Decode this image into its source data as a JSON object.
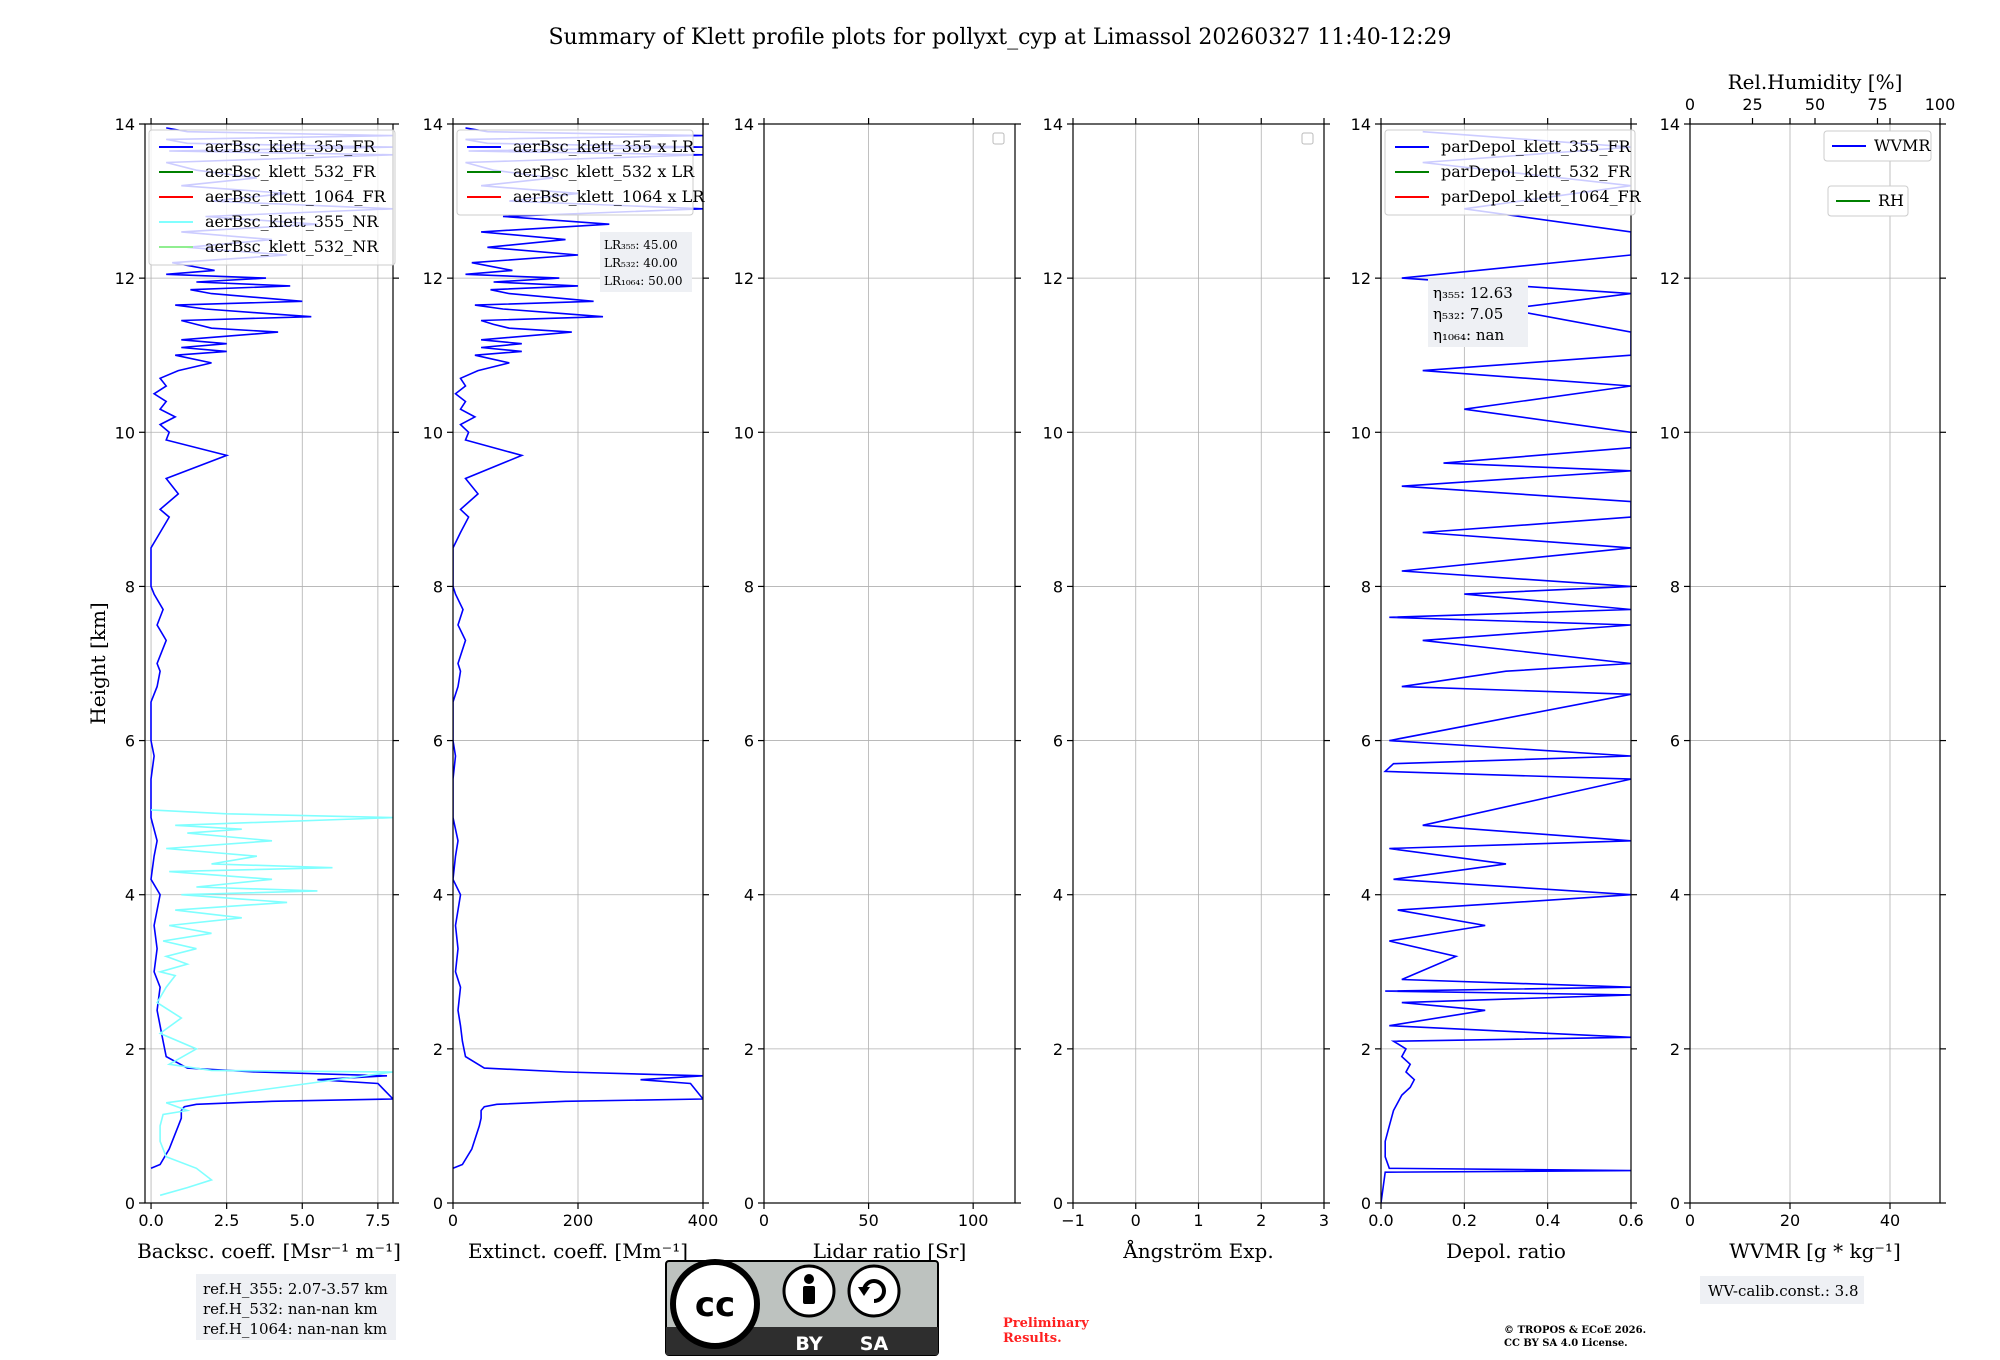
{
  "title": "Summary of Klett profile plots for pollyxt_cyp at Limassol 20260327 11:40-12:29",
  "colors": {
    "blue": "#0000ff",
    "green": "#008000",
    "red": "#ff0000",
    "cyan": "#80ffff",
    "lightgreen": "#90ee90",
    "prelim": "#ff2020"
  },
  "chart_data": [
    {
      "type": "line",
      "xlabel": "Backsc. coeff. [Msr⁻¹ m⁻¹]",
      "ylabel": "Height [km]",
      "xlim": [
        -0.2,
        8.0
      ],
      "ylim": [
        0,
        14
      ],
      "xticks": [
        "0.0",
        "2.5",
        "5.0",
        "7.5"
      ],
      "xtick_values": [
        0,
        2.5,
        5,
        7.5
      ],
      "yticks": [
        "0",
        "2",
        "4",
        "6",
        "8",
        "10",
        "12",
        "14"
      ],
      "legend": [
        "aerBsc_klett_355_FR",
        "aerBsc_klett_532_FR",
        "aerBsc_klett_1064_FR",
        "aerBsc_klett_355_NR",
        "aerBsc_klett_532_NR"
      ],
      "legend_colors": [
        "blue",
        "green",
        "red",
        "cyan",
        "lightgreen"
      ],
      "series": [
        {
          "name": "aerBsc_klett_355_FR",
          "color": "blue",
          "x": [
            0,
            0.3,
            0.6,
            0.9,
            1.0,
            1.0,
            1.1,
            1.5,
            4.0,
            8.0,
            7.5,
            5.5,
            7.8,
            3.5,
            1.2,
            0.5,
            0.4,
            0.3,
            0.2,
            0.3,
            0.1,
            0.2,
            0.1,
            0.3,
            0,
            0.1,
            0.2,
            0,
            0,
            0.1,
            0,
            0,
            0.2,
            0.3,
            0.2,
            0.5,
            0.2,
            0.4,
            0.1,
            0,
            0,
            0,
            0.3,
            0.6,
            0.3,
            0.9,
            0.5,
            2.5,
            0.5,
            0.6,
            0.3,
            0.8,
            0.3,
            0.5,
            0.1,
            0.5,
            0.3,
            0.9,
            2.0,
            0.8,
            2.5,
            1.0,
            2.5,
            1.0,
            4.2,
            2.0,
            1.5,
            1.0,
            5.3,
            3.5,
            1.8,
            0.8,
            5.0,
            2.0,
            1.3,
            4.6,
            1.5,
            3.8,
            0.5,
            2.1,
            0.7,
            4.5,
            1.2,
            4.0,
            1.0,
            5.5,
            1.8,
            8.0,
            2.0,
            4.5,
            1.0,
            3.5,
            1.5,
            0.5,
            8.0,
            0.6,
            8.0,
            1.2,
            0.5,
            8.0,
            1.2,
            0.5
          ],
          "y": [
            0.45,
            0.5,
            0.7,
            1.0,
            1.1,
            1.2,
            1.25,
            1.28,
            1.32,
            1.35,
            1.55,
            1.6,
            1.65,
            1.7,
            1.75,
            1.9,
            2.1,
            2.3,
            2.5,
            2.8,
            3.0,
            3.3,
            3.6,
            4.0,
            4.2,
            4.5,
            4.7,
            5.0,
            5.5,
            5.8,
            6.0,
            6.5,
            6.7,
            6.9,
            7.0,
            7.3,
            7.5,
            7.7,
            7.9,
            8.0,
            8.3,
            8.5,
            8.7,
            8.9,
            9.0,
            9.2,
            9.4,
            9.7,
            9.9,
            10.0,
            10.1,
            10.2,
            10.3,
            10.4,
            10.5,
            10.6,
            10.7,
            10.8,
            10.9,
            11.0,
            11.05,
            11.1,
            11.15,
            11.2,
            11.3,
            11.35,
            11.4,
            11.45,
            11.5,
            11.55,
            11.6,
            11.65,
            11.7,
            11.8,
            11.85,
            11.9,
            11.95,
            12.0,
            12.05,
            12.1,
            12.2,
            12.3,
            12.4,
            12.5,
            12.6,
            12.7,
            12.8,
            12.9,
            13.0,
            13.1,
            13.2,
            13.3,
            13.4,
            13.5,
            13.6,
            13.65,
            13.7,
            13.75,
            13.8,
            13.85,
            13.9,
            13.95
          ]
        },
        {
          "name": "aerBsc_klett_355_NR",
          "color": "cyan",
          "x": [
            0.3,
            1.2,
            2.0,
            1.5,
            0.5,
            0.3,
            0.3,
            0.4,
            1.2,
            0.5,
            8.0,
            2.0,
            0.6,
            1.5,
            0.3,
            1.0,
            0.2,
            0.5,
            0.8,
            0.3,
            1.2,
            0.5,
            1.5,
            0.4,
            2.0,
            0.6,
            3.0,
            0.8,
            4.5,
            1.0,
            5.5,
            1.5,
            4.0,
            0.6,
            6.0,
            2.0,
            3.5,
            0.5,
            4.0,
            1.2,
            3.0,
            0.8,
            8.0,
            2.5,
            0
          ],
          "y": [
            0.1,
            0.2,
            0.3,
            0.45,
            0.6,
            0.8,
            1.0,
            1.15,
            1.2,
            1.3,
            1.7,
            1.72,
            1.8,
            2.0,
            2.2,
            2.4,
            2.6,
            2.8,
            2.95,
            3.0,
            3.1,
            3.2,
            3.3,
            3.4,
            3.5,
            3.6,
            3.7,
            3.8,
            3.9,
            4.0,
            4.05,
            4.1,
            4.2,
            4.3,
            4.35,
            4.4,
            4.5,
            4.6,
            4.7,
            4.8,
            4.85,
            4.9,
            5.0,
            5.05,
            5.1
          ]
        }
      ],
      "annotations": []
    },
    {
      "type": "line",
      "xlabel": "Extinct. coeff. [Mm⁻¹]",
      "ylabel": "",
      "xlim": [
        0,
        400
      ],
      "ylim": [
        0,
        14
      ],
      "xticks": [
        "0",
        "200",
        "400"
      ],
      "xtick_values": [
        0,
        200,
        400
      ],
      "yticks": [
        "0",
        "2",
        "4",
        "6",
        "8",
        "10",
        "12",
        "14"
      ],
      "legend": [
        "aerBsc_klett_355 x LR",
        "aerBsc_klett_532 x LR",
        "aerBsc_klett_1064 x LR"
      ],
      "legend_colors": [
        "blue",
        "green",
        "red"
      ],
      "series": [
        {
          "name": "aerBsc_klett_355 x LR",
          "color": "blue",
          "x": [
            0,
            15,
            30,
            42,
            45,
            45,
            50,
            70,
            180,
            400,
            380,
            300,
            400,
            180,
            50,
            20,
            15,
            12,
            8,
            12,
            4,
            8,
            4,
            12,
            0,
            4,
            8,
            0,
            0,
            4,
            0,
            0,
            8,
            12,
            8,
            20,
            8,
            16,
            4,
            0,
            0,
            0,
            12,
            25,
            12,
            40,
            20,
            110,
            20,
            25,
            12,
            35,
            12,
            20,
            4,
            20,
            12,
            40,
            90,
            35,
            110,
            45,
            110,
            45,
            190,
            90,
            65,
            45,
            240,
            160,
            80,
            35,
            225,
            90,
            60,
            200,
            65,
            170,
            20,
            95,
            30,
            200,
            55,
            180,
            45,
            250,
            80,
            400,
            90,
            200,
            45,
            160,
            65,
            20,
            400,
            25,
            400,
            55,
            20,
            400,
            55,
            20
          ],
          "y": [
            0.45,
            0.5,
            0.7,
            1.0,
            1.1,
            1.2,
            1.25,
            1.28,
            1.32,
            1.35,
            1.55,
            1.6,
            1.65,
            1.7,
            1.75,
            1.9,
            2.1,
            2.3,
            2.5,
            2.8,
            3.0,
            3.3,
            3.6,
            4.0,
            4.2,
            4.5,
            4.7,
            5.0,
            5.5,
            5.8,
            6.0,
            6.5,
            6.7,
            6.9,
            7.0,
            7.3,
            7.5,
            7.7,
            7.9,
            8.0,
            8.3,
            8.5,
            8.7,
            8.9,
            9.0,
            9.2,
            9.4,
            9.7,
            9.9,
            10.0,
            10.1,
            10.2,
            10.3,
            10.4,
            10.5,
            10.6,
            10.7,
            10.8,
            10.9,
            11.0,
            11.05,
            11.1,
            11.15,
            11.2,
            11.3,
            11.35,
            11.4,
            11.45,
            11.5,
            11.55,
            11.6,
            11.65,
            11.7,
            11.8,
            11.85,
            11.9,
            11.95,
            12.0,
            12.05,
            12.1,
            12.2,
            12.3,
            12.4,
            12.5,
            12.6,
            12.7,
            12.8,
            12.9,
            13.0,
            13.1,
            13.2,
            13.3,
            13.4,
            13.5,
            13.6,
            13.65,
            13.7,
            13.75,
            13.8,
            13.85,
            13.9,
            13.95
          ]
        }
      ],
      "annotations": [
        "LR₃₅₅: 45.00",
        "LR₅₃₂: 40.00",
        "LR₁₀₆₄: 50.00"
      ]
    },
    {
      "type": "line",
      "xlabel": "Lidar ratio [Sr]",
      "ylabel": "",
      "xlim": [
        0,
        120
      ],
      "ylim": [
        0,
        14
      ],
      "xticks": [
        "0",
        "50",
        "100"
      ],
      "xtick_values": [
        0,
        50,
        100
      ],
      "yticks": [
        "0",
        "2",
        "4",
        "6",
        "8",
        "10",
        "12",
        "14"
      ],
      "legend": [],
      "series": [],
      "annotations": []
    },
    {
      "type": "line",
      "xlabel": "Ångström Exp.",
      "ylabel": "",
      "xlim": [
        -1,
        3
      ],
      "ylim": [
        0,
        14
      ],
      "xticks": [
        "−1",
        "0",
        "1",
        "2",
        "3"
      ],
      "xtick_values": [
        -1,
        0,
        1,
        2,
        3
      ],
      "yticks": [
        "0",
        "2",
        "4",
        "6",
        "8",
        "10",
        "12",
        "14"
      ],
      "legend": [],
      "series": [],
      "annotations": []
    },
    {
      "type": "line",
      "xlabel": "Depol. ratio",
      "ylabel": "",
      "xlim": [
        0,
        0.6
      ],
      "ylim": [
        0,
        14
      ],
      "xticks": [
        "0.0",
        "0.2",
        "0.4",
        "0.6"
      ],
      "xtick_values": [
        0,
        0.2,
        0.4,
        0.6
      ],
      "yticks": [
        "0",
        "2",
        "4",
        "6",
        "8",
        "10",
        "12",
        "14"
      ],
      "legend": [
        "parDepol_klett_355_FR",
        "parDepol_klett_532_FR",
        "parDepol_klett_1064_FR"
      ],
      "legend_colors": [
        "blue",
        "green",
        "red"
      ],
      "series": [
        {
          "name": "parDepol_klett_355_FR",
          "color": "blue",
          "x": [
            0.0,
            0.01,
            0.6,
            0.02,
            0.01,
            0.01,
            0.02,
            0.03,
            0.05,
            0.07,
            0.08,
            0.06,
            0.07,
            0.05,
            0.06,
            0.03,
            0.6,
            0.02,
            0.25,
            0.05,
            0.6,
            0.01,
            0.6,
            0.05,
            0.18,
            0.02,
            0.25,
            0.04,
            0.6,
            0.03,
            0.3,
            0.02,
            0.6,
            0.1,
            0.6,
            0.01,
            0.03,
            0.6,
            0.02,
            0.6,
            0.05,
            0.3,
            0.6,
            0.1,
            0.6,
            0.02,
            0.6,
            0.2,
            0.6,
            0.05,
            0.6,
            0.1,
            0.6,
            0.6,
            0.05,
            0.6,
            0.15,
            0.6,
            0.6,
            0.2,
            0.6,
            0.1,
            0.6,
            0.6,
            0.3,
            0.6,
            0.05,
            0.6,
            0.6,
            0.2,
            0.6,
            0.1,
            0.6,
            0.1
          ],
          "y": [
            0.0,
            0.4,
            0.42,
            0.45,
            0.6,
            0.8,
            1.0,
            1.2,
            1.4,
            1.5,
            1.6,
            1.7,
            1.8,
            1.9,
            2.0,
            2.1,
            2.15,
            2.3,
            2.5,
            2.6,
            2.7,
            2.75,
            2.8,
            2.9,
            3.2,
            3.4,
            3.6,
            3.8,
            4.0,
            4.2,
            4.4,
            4.6,
            4.7,
            4.9,
            5.5,
            5.6,
            5.7,
            5.8,
            6.0,
            6.6,
            6.7,
            6.9,
            7.0,
            7.3,
            7.5,
            7.6,
            7.7,
            7.9,
            8.0,
            8.2,
            8.5,
            8.7,
            8.9,
            9.1,
            9.3,
            9.5,
            9.6,
            9.8,
            10.0,
            10.3,
            10.6,
            10.8,
            11.0,
            11.3,
            11.6,
            11.8,
            12.0,
            12.3,
            12.6,
            12.9,
            13.2,
            13.5,
            13.7,
            13.9
          ]
        }
      ],
      "annotations": [
        "η₃₅₅: 12.63",
        "η₅₃₂: 7.05",
        "η₁₀₆₄: nan"
      ]
    },
    {
      "type": "line",
      "xlabel": "WVMR [g * kg⁻¹]",
      "x2label": "Rel.Humidity [%]",
      "ylabel": "",
      "xlim": [
        0,
        50
      ],
      "ylim": [
        0,
        14
      ],
      "xticks": [
        "0",
        "20",
        "40"
      ],
      "xtick_values": [
        0,
        20,
        40
      ],
      "x2ticks": [
        "0",
        "25",
        "50",
        "75",
        "100"
      ],
      "x2tick_values": [
        0,
        25,
        50,
        75,
        100
      ],
      "yticks": [
        "0",
        "2",
        "4",
        "6",
        "8",
        "10",
        "12",
        "14"
      ],
      "legend": [
        "WVMR",
        "RH"
      ],
      "legend_colors": [
        "blue",
        "green"
      ],
      "series": [],
      "annotations": []
    }
  ],
  "footer": {
    "ref_heights": [
      "ref.H_355: 2.07-3.57 km",
      "ref.H_532: nan-nan km",
      "ref.H_1064: nan-nan km"
    ],
    "license_logo_labels": [
      "BY",
      "SA"
    ],
    "preliminary": [
      "Preliminary",
      "Results."
    ],
    "copyright": [
      "© TROPOS & ECoE 2026.",
      "CC BY SA 4.0 License."
    ],
    "wv_calib": "WV-calib.const.: 3.8"
  }
}
